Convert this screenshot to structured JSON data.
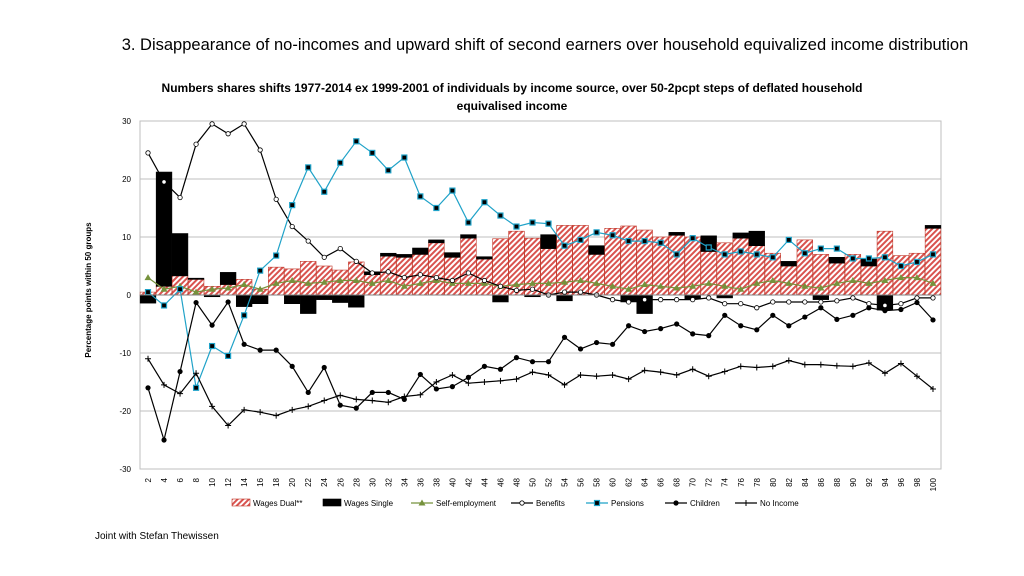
{
  "slide": {
    "title": "3. Disappearance of no-incomes and upward shift of second earners over household equivalized income distribution",
    "footer": "Joint with Stefan Thewissen"
  },
  "chart_data": {
    "type": "bar",
    "title": "Numbers shares shifts 1977-2014 ex 1999-2001 of individuals by income source, over 50-2pcpt steps of deflated household equivalised income",
    "xlabel": "",
    "ylabel": "Percentage points within 50 groups",
    "ylim": [
      -30,
      30
    ],
    "yticks": [
      30,
      20,
      10,
      0,
      -10,
      -20,
      -30
    ],
    "grid": true,
    "legend_position": "bottom",
    "stacked_bars": true,
    "x": [
      2,
      4,
      6,
      8,
      10,
      12,
      14,
      16,
      18,
      20,
      22,
      24,
      26,
      28,
      30,
      32,
      34,
      36,
      38,
      40,
      42,
      44,
      46,
      48,
      50,
      52,
      54,
      56,
      58,
      60,
      62,
      64,
      66,
      68,
      70,
      72,
      74,
      76,
      78,
      80,
      82,
      84,
      86,
      88,
      90,
      92,
      94,
      96,
      98,
      100
    ],
    "series": [
      {
        "name": "Wages Dual**",
        "kind": "bar",
        "color": "#d9534f",
        "values": [
          0.5,
          1.5,
          3.3,
          2.7,
          1.5,
          1.8,
          2.7,
          1.0,
          4.8,
          4.5,
          5.8,
          5.0,
          4.3,
          5.7,
          3.5,
          6.7,
          6.5,
          7.0,
          9.0,
          6.5,
          9.8,
          6.2,
          9.7,
          11.0,
          9.8,
          8.0,
          12.0,
          12.0,
          7.0,
          11.5,
          11.9,
          11.2,
          10.0,
          10.3,
          10.0,
          7.5,
          9.0,
          9.8,
          8.5,
          7.2,
          5.0,
          9.5,
          7.0,
          5.5,
          7.0,
          5.0,
          11.0,
          6.8,
          7.2,
          11.5
        ]
      },
      {
        "name": "Wages Single",
        "kind": "bar",
        "color": "#000000",
        "values": [
          -1.4,
          19.7,
          7.3,
          0.2,
          -0.3,
          2.1,
          -2.0,
          -1.5,
          0.0,
          -1.5,
          -3.2,
          -0.8,
          -1.3,
          -2.1,
          0.5,
          0.5,
          0.5,
          1.1,
          0.5,
          0.8,
          0.6,
          0.4,
          -1.2,
          0.0,
          -0.3,
          2.4,
          -1.0,
          0.0,
          1.5,
          0.0,
          -1.2,
          -3.2,
          0.0,
          0.5,
          -0.7,
          2.7,
          -0.5,
          0.9,
          2.5,
          0.0,
          0.8,
          0.0,
          -0.8,
          1.0,
          0.0,
          1.2,
          -2.6,
          0.0,
          0.0,
          0.5
        ]
      },
      {
        "name": "Self-employment",
        "kind": "line",
        "color": "#76923c",
        "marker": "triangle",
        "values": [
          3.0,
          1.0,
          1.5,
          0.5,
          1.0,
          1.2,
          1.8,
          1.0,
          2.0,
          2.5,
          2.0,
          2.2,
          2.5,
          2.5,
          2.0,
          2.5,
          1.5,
          2.0,
          2.5,
          2.0,
          2.0,
          2.0,
          1.5,
          1.8,
          2.0,
          2.0,
          2.2,
          2.5,
          2.0,
          1.5,
          1.0,
          1.8,
          1.5,
          1.2,
          1.5,
          2.0,
          1.5,
          1.0,
          2.0,
          2.5,
          2.0,
          1.5,
          1.2,
          2.0,
          2.5,
          2.0,
          2.5,
          3.0,
          3.0,
          2.0
        ]
      },
      {
        "name": "Benefits",
        "kind": "line",
        "color": "#000000",
        "marker": "circle-open",
        "values": [
          24.5,
          19.5,
          16.8,
          26.0,
          29.5,
          27.8,
          29.5,
          25.0,
          16.5,
          11.8,
          9.3,
          6.5,
          8.0,
          5.8,
          3.8,
          4.0,
          3.0,
          3.5,
          3.0,
          2.5,
          3.8,
          2.5,
          1.5,
          0.8,
          1.0,
          0.0,
          0.5,
          0.5,
          0.0,
          -0.8,
          -1.2,
          -0.8,
          -0.8,
          -0.8,
          -0.8,
          -0.5,
          -1.5,
          -1.5,
          -2.2,
          -1.2,
          -1.2,
          -1.2,
          -1.2,
          -1.0,
          -0.5,
          -1.5,
          -1.8,
          -1.5,
          -0.5,
          -0.5
        ]
      },
      {
        "name": "Pensions",
        "kind": "line",
        "color": "#1fa2c8",
        "marker": "square",
        "values": [
          0.5,
          -1.8,
          1.0,
          -16.0,
          -8.8,
          -10.5,
          -3.5,
          4.2,
          6.8,
          15.5,
          22.0,
          17.8,
          22.8,
          26.5,
          24.5,
          21.5,
          23.7,
          17.0,
          15.0,
          18.0,
          12.5,
          16.0,
          13.7,
          11.8,
          12.5,
          12.3,
          8.5,
          9.5,
          10.8,
          10.3,
          9.3,
          9.3,
          9.0,
          7.0,
          9.8,
          8.2,
          7.0,
          7.5,
          7.0,
          6.5,
          9.5,
          7.2,
          8.0,
          8.0,
          6.3,
          6.3,
          6.5,
          5.0,
          5.7,
          7.0
        ]
      },
      {
        "name": "Children",
        "kind": "line",
        "color": "#000000",
        "marker": "circle",
        "values": [
          -16.0,
          -25.0,
          -13.2,
          -1.3,
          -5.2,
          -1.2,
          -8.5,
          -9.5,
          -9.5,
          -12.3,
          -16.8,
          -12.5,
          -19.0,
          -19.5,
          -16.8,
          -16.8,
          -18.0,
          -13.7,
          -16.2,
          -15.8,
          -14.2,
          -12.3,
          -12.8,
          -10.8,
          -11.5,
          -11.5,
          -7.3,
          -9.3,
          -8.2,
          -8.5,
          -5.3,
          -6.3,
          -5.8,
          -5.0,
          -6.7,
          -7.0,
          -3.5,
          -5.3,
          -6.0,
          -3.5,
          -5.3,
          -3.8,
          -2.2,
          -4.2,
          -3.5,
          -2.2,
          -2.7,
          -2.5,
          -1.3,
          -4.3
        ]
      },
      {
        "name": "No Income",
        "kind": "line",
        "color": "#000000",
        "marker": "plus",
        "values": [
          -11.0,
          -15.5,
          -17.0,
          -13.5,
          -19.2,
          -22.5,
          -19.8,
          -20.2,
          -20.8,
          -19.8,
          -19.2,
          -18.2,
          -17.3,
          -18.0,
          -18.2,
          -18.5,
          -17.5,
          -17.2,
          -15.0,
          -13.8,
          -15.2,
          -15.0,
          -14.8,
          -14.5,
          -13.3,
          -13.8,
          -15.5,
          -13.8,
          -14.0,
          -13.8,
          -14.5,
          -13.0,
          -13.3,
          -13.8,
          -12.8,
          -14.0,
          -13.2,
          -12.3,
          -12.5,
          -12.3,
          -11.3,
          -12.0,
          -12.0,
          -12.2,
          -12.3,
          -11.7,
          -13.5,
          -11.8,
          -14.0,
          -16.2
        ]
      }
    ]
  }
}
